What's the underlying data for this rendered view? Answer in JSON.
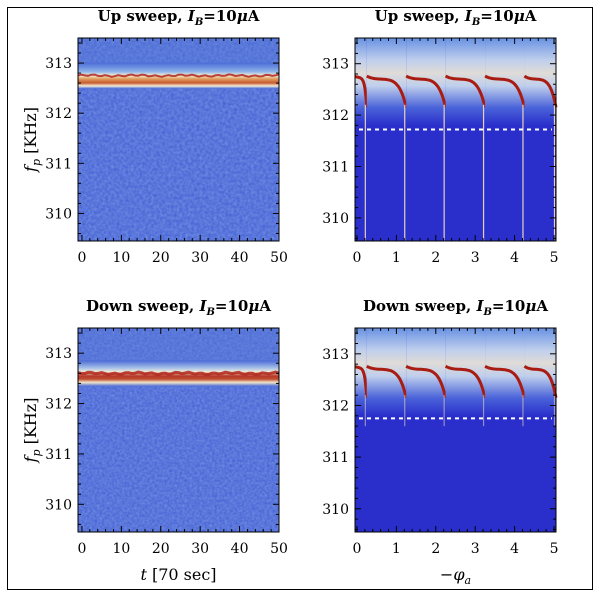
{
  "chart_data": [
    {
      "type": "heatmap",
      "panel": "top-left",
      "title": "Up sweep, I_B=10μA",
      "title_parts": {
        "prefix": "Up sweep, ",
        "var": "I",
        "sub": "B",
        "suffix": "=10",
        "mu": "μ",
        "unit": "A"
      },
      "xlabel": "",
      "ylabel": "f_p [KHz]",
      "xlim": [
        -1,
        50
      ],
      "ylim": [
        309.45,
        313.5
      ],
      "xticks": [
        0,
        10,
        20,
        30,
        40,
        50
      ],
      "yticks": [
        310,
        311,
        312,
        313
      ],
      "ridge_frequency_khz": 312.75,
      "colormap": "blue-white-red"
    },
    {
      "type": "heatmap",
      "panel": "top-right",
      "title": "Up sweep, I_B=10μA",
      "title_parts": {
        "prefix": "Up sweep, ",
        "var": "I",
        "sub": "B",
        "suffix": "=10",
        "mu": "μ",
        "unit": "A"
      },
      "xlabel": "",
      "ylabel": "",
      "xlim": [
        -0.05,
        5.05
      ],
      "ylim": [
        309.55,
        313.5
      ],
      "xticks": [
        0,
        1,
        2,
        3,
        4,
        5
      ],
      "yticks": [
        310,
        311,
        312,
        313
      ],
      "dashed_line_khz": 311.72,
      "period_breaks": [
        0.25,
        1.25,
        2.25,
        3.25,
        4.25
      ],
      "ridge_frequency_khz": 312.7,
      "colormap": "blue-white-red"
    },
    {
      "type": "heatmap",
      "panel": "bottom-left",
      "title": "Down sweep, I_B=10μA",
      "title_parts": {
        "prefix": "Down sweep, ",
        "var": "I",
        "sub": "B",
        "suffix": "=10",
        "mu": "μ",
        "unit": "A"
      },
      "xlabel": "t [70 sec]",
      "ylabel": "f_p [KHz]",
      "xlim": [
        -1,
        50
      ],
      "ylim": [
        309.45,
        313.5
      ],
      "xticks": [
        0,
        10,
        20,
        30,
        40,
        50
      ],
      "yticks": [
        310,
        311,
        312,
        313
      ],
      "ridge_frequency_khz": 312.6,
      "colormap": "blue-white-red"
    },
    {
      "type": "heatmap",
      "panel": "bottom-right",
      "title": "Down sweep, I_B=10μA",
      "title_parts": {
        "prefix": "Down sweep, ",
        "var": "I",
        "sub": "B",
        "suffix": "=10",
        "mu": "μ",
        "unit": "A"
      },
      "xlabel": "−φ_a",
      "ylabel": "",
      "xlim": [
        -0.05,
        5.05
      ],
      "ylim": [
        309.55,
        313.5
      ],
      "xticks": [
        0,
        1,
        2,
        3,
        4,
        5
      ],
      "yticks": [
        310,
        311,
        312,
        313
      ],
      "dashed_line_khz": 311.75,
      "period_breaks": [
        0.25,
        1.25,
        2.25,
        3.25,
        4.25
      ],
      "ridge_frequency_khz": 312.7,
      "colormap": "blue-white-red"
    }
  ],
  "axis_labels": {
    "fp_var": "f",
    "fp_sub": "p",
    "fp_unit": " [KHz]",
    "t_var": "t",
    "t_unit": " [70 sec]",
    "phi_minus": "−",
    "phi_var": "φ",
    "phi_sub": "a"
  },
  "colors": {
    "deep_blue": "#2a2fcc",
    "mid_blue": "#4a6fd8",
    "light": "#f3f2e8",
    "dark_red": "#9b1a10",
    "dashed_line": "#ffffff",
    "frame": "#000000"
  }
}
